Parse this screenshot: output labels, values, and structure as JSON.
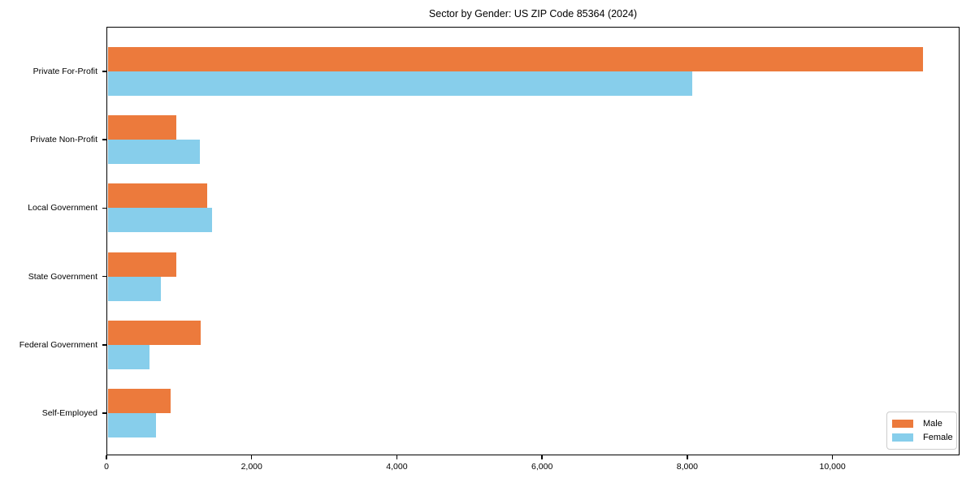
{
  "chart_data": {
    "type": "bar",
    "orientation": "horizontal",
    "title": "Sector by Gender: US ZIP Code 85364 (2024)",
    "categories": [
      "Private For-Profit",
      "Private Non-Profit",
      "Local Government",
      "State Government",
      "Federal Government",
      "Self-Employed"
    ],
    "series": [
      {
        "name": "Male",
        "color": "#EC7A3C",
        "values": [
          11250,
          960,
          1390,
          960,
          1300,
          880
        ]
      },
      {
        "name": "Female",
        "color": "#87CEEB",
        "values": [
          8070,
          1290,
          1460,
          750,
          590,
          680
        ]
      }
    ],
    "xlabel": "",
    "ylabel": "",
    "xlim": [
      0,
      11750
    ],
    "xticks": [
      {
        "value": 0,
        "label": "0"
      },
      {
        "value": 2000,
        "label": "2,000"
      },
      {
        "value": 4000,
        "label": "4,000"
      },
      {
        "value": 6000,
        "label": "6,000"
      },
      {
        "value": 8000,
        "label": "8,000"
      },
      {
        "value": 10000,
        "label": "10,000"
      }
    ],
    "grid": false,
    "legend_position": "lower right"
  }
}
